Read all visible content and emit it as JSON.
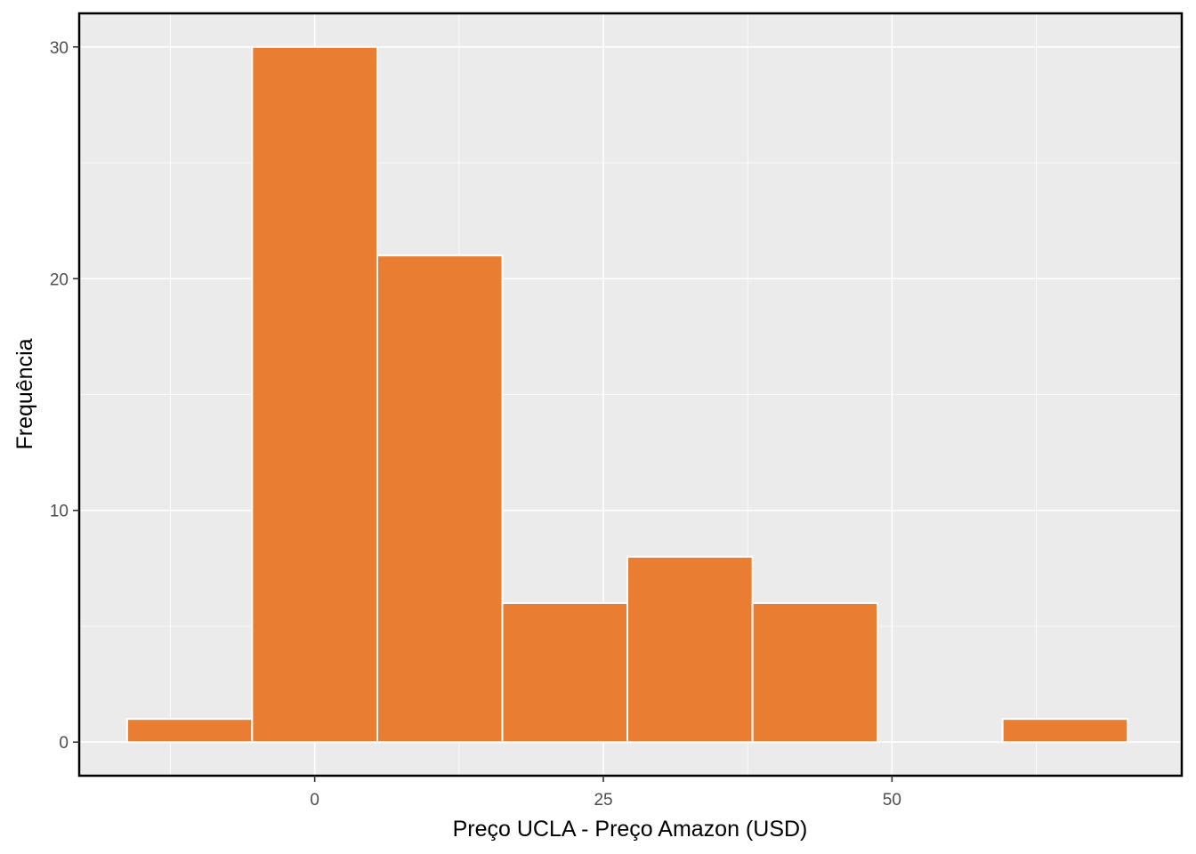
{
  "chart_data": {
    "type": "bar",
    "subtype": "histogram",
    "title": "",
    "xlabel": "Preço UCLA - Preço Amazon (USD)",
    "ylabel": "Frequência",
    "bins": [
      {
        "x0": -16.25,
        "x1": -5.42,
        "count": 1
      },
      {
        "x0": -5.42,
        "x1": 5.42,
        "count": 30
      },
      {
        "x0": 5.42,
        "x1": 16.25,
        "count": 21
      },
      {
        "x0": 16.25,
        "x1": 27.08,
        "count": 6
      },
      {
        "x0": 27.08,
        "x1": 37.92,
        "count": 8
      },
      {
        "x0": 37.92,
        "x1": 48.75,
        "count": 6
      },
      {
        "x0": 48.75,
        "x1": 59.58,
        "count": 0
      },
      {
        "x0": 59.58,
        "x1": 70.42,
        "count": 1
      }
    ],
    "xlim": [
      -20.4,
      75.1
    ],
    "ylim": [
      -1.45,
      31.45
    ],
    "x_ticks": [
      0,
      25,
      50
    ],
    "x_minor_ticks": [
      -12.5,
      12.5,
      37.5,
      62.5
    ],
    "y_ticks": [
      0,
      10,
      20,
      30
    ],
    "y_minor_ticks": [
      5,
      15,
      25
    ],
    "grid": true,
    "colors": {
      "bar_fill": "#E97E32",
      "bar_edge": "#FFFFFF",
      "panel_bg": "#EBEBEB",
      "grid": "#FFFFFF",
      "frame": "#000000"
    }
  }
}
